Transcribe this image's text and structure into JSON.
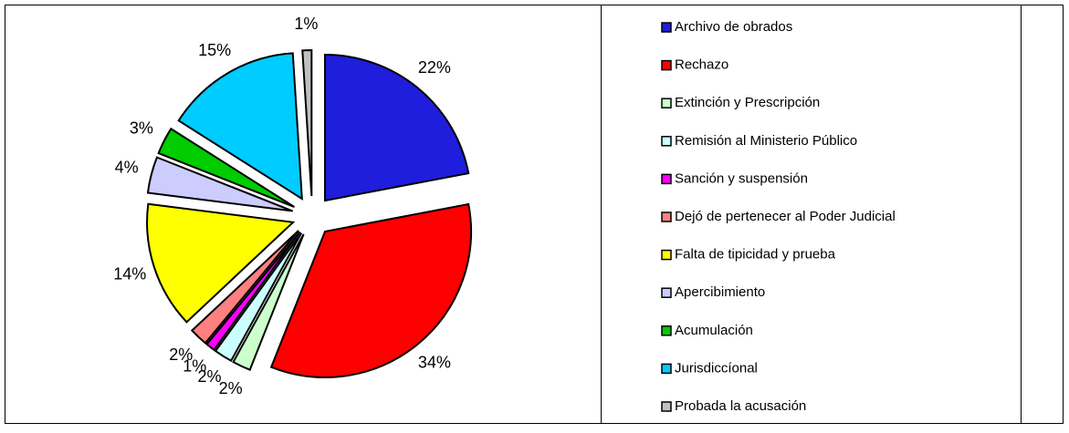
{
  "chart_data": {
    "type": "pie",
    "categories": [
      "Archivo de obrados",
      "Rechazo",
      "Extinción y Prescripción",
      "Remisión al Ministerio Público",
      "Sanción y suspensión",
      "Dejó de pertenecer al Poder Judicial",
      "Falta de tipicidad y prueba",
      "Apercibimiento",
      "Acumulación",
      "Jurisdiccíonal",
      "Probada la acusación"
    ],
    "values": [
      22,
      34,
      2,
      2,
      1,
      2,
      14,
      4,
      3,
      15,
      1
    ],
    "value_labels": [
      "22%",
      "34%",
      "2%",
      "2%",
      "1%",
      "2%",
      "14%",
      "4%",
      "3%",
      "15%",
      "1%"
    ],
    "colors": [
      "#1e1edc",
      "#ff0000",
      "#ccffcc",
      "#ccffff",
      "#ff00ff",
      "#ff8080",
      "#ffff00",
      "#ccccff",
      "#00cc00",
      "#00ccff",
      "#c0c0c0"
    ],
    "legend": "right"
  }
}
